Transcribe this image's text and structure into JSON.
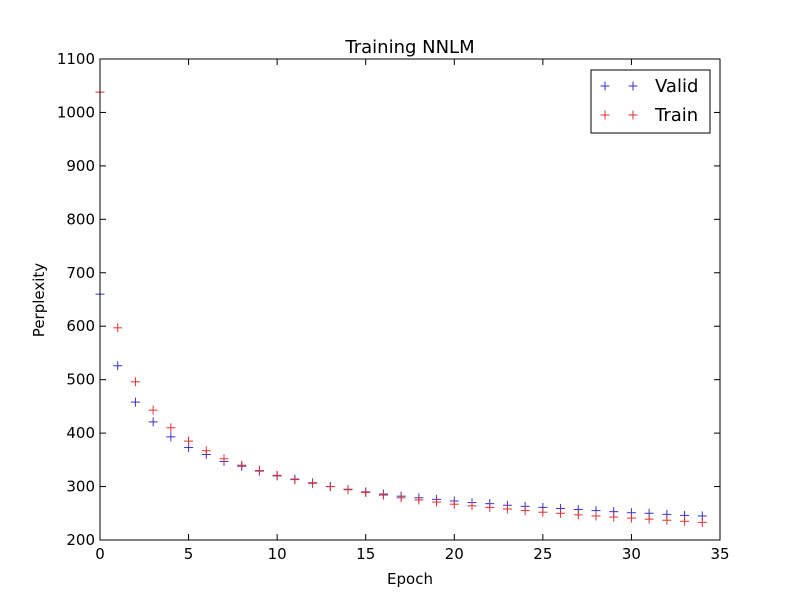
{
  "chart_data": {
    "type": "scatter",
    "title": "Training NNLM",
    "xlabel": "Epoch",
    "ylabel": "Perplexity",
    "xlim": [
      0,
      35
    ],
    "ylim": [
      200,
      1100
    ],
    "xticks": [
      0,
      5,
      10,
      15,
      20,
      25,
      30,
      35
    ],
    "yticks": [
      200,
      300,
      400,
      500,
      600,
      700,
      800,
      900,
      1000,
      1100
    ],
    "grid": false,
    "legend_position": "top-right",
    "marker": "+",
    "series": [
      {
        "name": "Valid",
        "color": "#3333cc",
        "x": [
          0,
          1,
          2,
          3,
          4,
          5,
          6,
          7,
          8,
          9,
          10,
          11,
          12,
          13,
          14,
          15,
          16,
          17,
          18,
          19,
          20,
          21,
          22,
          23,
          24,
          25,
          26,
          27,
          28,
          29,
          30,
          31,
          32,
          33,
          34
        ],
        "y": [
          660,
          526,
          458,
          421,
          393,
          373,
          360,
          347,
          338,
          329,
          320,
          314,
          307,
          300,
          295,
          290,
          286,
          282,
          279,
          276,
          273,
          270,
          268,
          265,
          263,
          261,
          259,
          257,
          255,
          253,
          251,
          250,
          248,
          246,
          245
        ]
      },
      {
        "name": "Train",
        "color": "#dd3333",
        "x": [
          0,
          1,
          2,
          3,
          4,
          5,
          6,
          7,
          8,
          9,
          10,
          11,
          12,
          13,
          14,
          15,
          16,
          17,
          18,
          19,
          20,
          21,
          22,
          23,
          24,
          25,
          26,
          27,
          28,
          29,
          30,
          31,
          32,
          33,
          34
        ],
        "y": [
          1038,
          597,
          496,
          443,
          410,
          385,
          367,
          352,
          340,
          330,
          321,
          313,
          306,
          300,
          294,
          289,
          284,
          279,
          275,
          271,
          267,
          264,
          261,
          258,
          255,
          252,
          250,
          247,
          245,
          243,
          241,
          239,
          237,
          235,
          233
        ]
      }
    ]
  }
}
